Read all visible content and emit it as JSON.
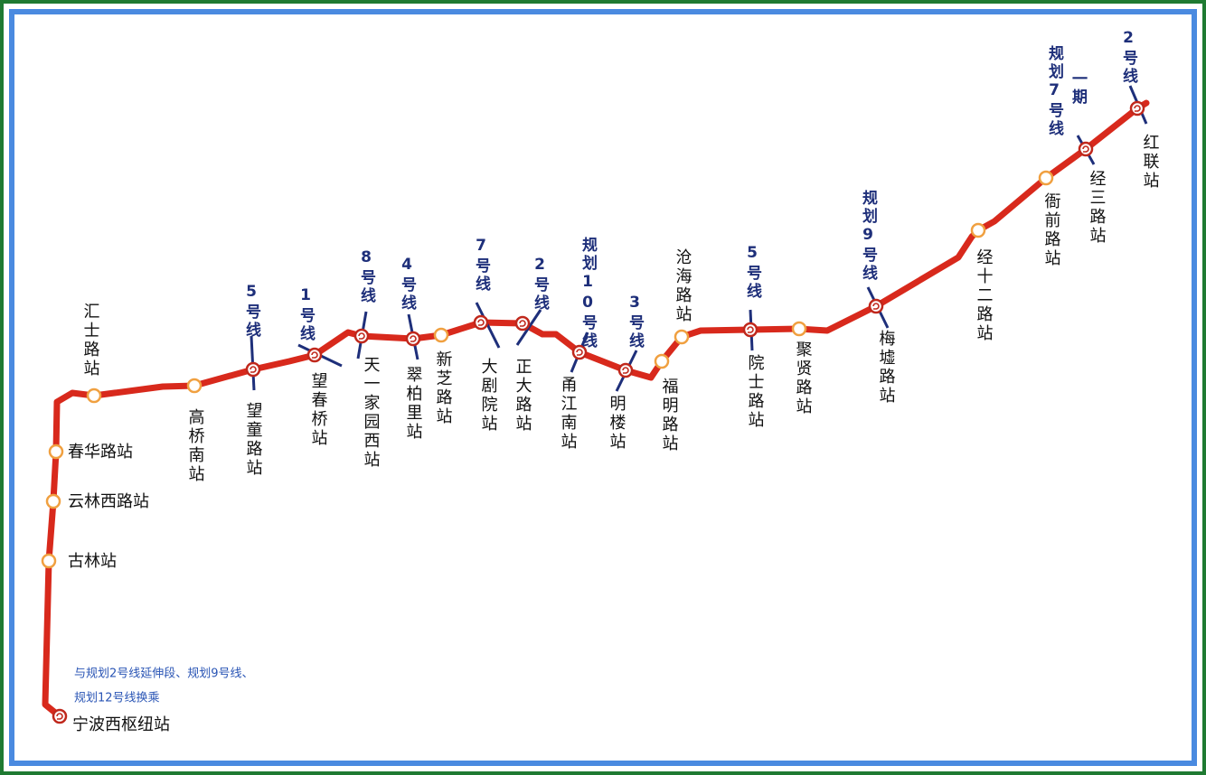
{
  "stations": [
    {
      "name": "宁波西枢纽站",
      "transfer_note": [
        "与规划2号线延伸段、规划9号线、",
        "规划12号线换乘"
      ]
    },
    {
      "name": "古林站"
    },
    {
      "name": "云林西路站"
    },
    {
      "name": "春华路站"
    },
    {
      "name": "汇士路站"
    },
    {
      "name": "高桥南站"
    },
    {
      "name": "望童路站",
      "transfers": [
        "5号线"
      ]
    },
    {
      "name": "望春桥站",
      "transfers": [
        "1号线"
      ]
    },
    {
      "name": "天一家园西站",
      "transfers": [
        "8号线"
      ]
    },
    {
      "name": "翠柏里站",
      "transfers": [
        "4号线"
      ]
    },
    {
      "name": "新芝路站"
    },
    {
      "name": "大剧院站",
      "transfers": [
        "7号线"
      ]
    },
    {
      "name": "正大路站",
      "transfers": [
        "2号线"
      ]
    },
    {
      "name": "甬江南站",
      "transfers": [
        "规划10号线"
      ]
    },
    {
      "name": "明楼站",
      "transfers": [
        "3号线"
      ]
    },
    {
      "name": "福明路站"
    },
    {
      "name": "沧海路站"
    },
    {
      "name": "院士路站",
      "transfers": [
        "5号线"
      ]
    },
    {
      "name": "聚贤路站"
    },
    {
      "name": "梅墟路站",
      "transfers": [
        "规划9号线"
      ]
    },
    {
      "name": "经十二路站"
    },
    {
      "name": "衙前路站"
    },
    {
      "name": "经三路站",
      "transfers": [
        "规划7号线",
        "一期"
      ]
    },
    {
      "name": "红联站",
      "transfers": [
        "2号线"
      ]
    }
  ]
}
